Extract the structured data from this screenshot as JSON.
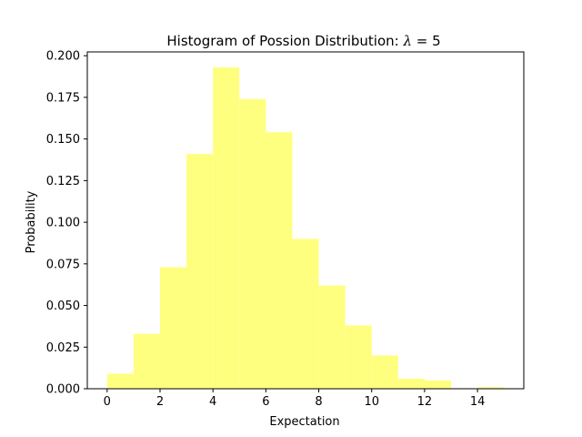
{
  "chart_data": {
    "type": "bar",
    "title_prefix": "Histogram of Possion Distribution: ",
    "title_symbol": "λ",
    "title_suffix": " = 5",
    "xlabel": "Expectation",
    "ylabel": "Probability",
    "xlim": [
      -0.75,
      15.75
    ],
    "ylim": [
      0,
      0.2023
    ],
    "bin_width": 1,
    "bins": [
      {
        "x0": 0,
        "value": 0.009
      },
      {
        "x0": 1,
        "value": 0.033
      },
      {
        "x0": 2,
        "value": 0.073
      },
      {
        "x0": 3,
        "value": 0.141
      },
      {
        "x0": 4,
        "value": 0.193
      },
      {
        "x0": 5,
        "value": 0.174
      },
      {
        "x0": 6,
        "value": 0.154
      },
      {
        "x0": 7,
        "value": 0.09
      },
      {
        "x0": 8,
        "value": 0.062
      },
      {
        "x0": 9,
        "value": 0.038
      },
      {
        "x0": 10,
        "value": 0.02
      },
      {
        "x0": 11,
        "value": 0.006
      },
      {
        "x0": 12,
        "value": 0.005
      },
      {
        "x0": 13,
        "value": 0.0
      },
      {
        "x0": 14,
        "value": 0.001
      }
    ],
    "x_ticks": [
      0,
      2,
      4,
      6,
      8,
      10,
      12,
      14
    ],
    "x_tick_labels": [
      "0",
      "2",
      "4",
      "6",
      "8",
      "10",
      "12",
      "14"
    ],
    "y_ticks": [
      0.0,
      0.025,
      0.05,
      0.075,
      0.1,
      0.125,
      0.15,
      0.175,
      0.2
    ],
    "y_tick_labels": [
      "0.000",
      "0.025",
      "0.050",
      "0.075",
      "0.100",
      "0.125",
      "0.150",
      "0.175",
      "0.200"
    ],
    "bar_color": "#ffff7f",
    "grid": false,
    "legend": "none"
  }
}
